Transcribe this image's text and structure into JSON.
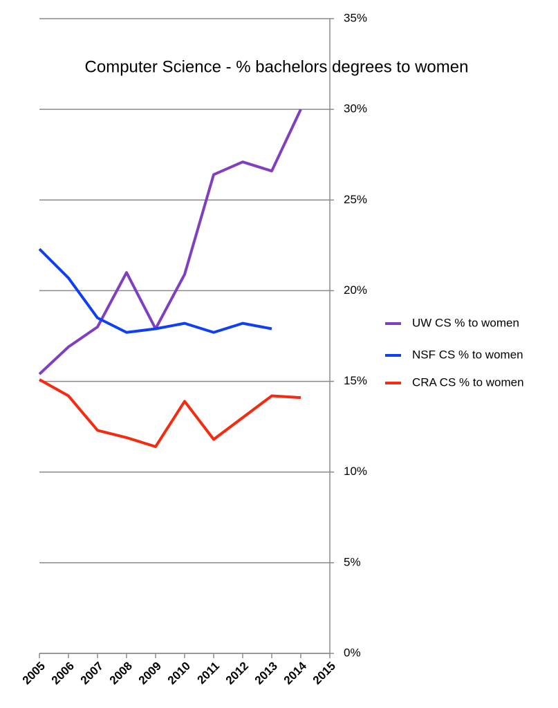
{
  "chart_data": {
    "type": "line",
    "title": "Computer Science - % bachelors degrees to women",
    "x": [
      2005,
      2006,
      2007,
      2008,
      2009,
      2010,
      2011,
      2012,
      2013,
      2014
    ],
    "xlim": [
      2005,
      2015
    ],
    "xticks": [
      2005,
      2006,
      2007,
      2008,
      2009,
      2010,
      2011,
      2012,
      2013,
      2014,
      2015
    ],
    "ylim": [
      0,
      35
    ],
    "yticks": [
      {
        "value": 0,
        "label": "0%"
      },
      {
        "value": 5,
        "label": "5%"
      },
      {
        "value": 10,
        "label": "10%"
      },
      {
        "value": 15,
        "label": "15%"
      },
      {
        "value": 20,
        "label": "20%"
      },
      {
        "value": 25,
        "label": "25%"
      },
      {
        "value": 30,
        "label": "30%"
      },
      {
        "value": 35,
        "label": "35%"
      }
    ],
    "grid": true,
    "legend": "right",
    "series": [
      {
        "name": "UW CS % to women",
        "color": "#7f3fbf",
        "values": [
          15.4,
          16.9,
          18.0,
          21.0,
          17.9,
          20.9,
          26.4,
          27.1,
          26.6,
          30.0
        ]
      },
      {
        "name": "NSF CS % to women",
        "color": "#0f3ff5",
        "values": [
          22.3,
          20.7,
          18.5,
          17.7,
          17.9,
          18.2,
          17.7,
          18.2,
          17.9,
          null
        ]
      },
      {
        "name": "CRA CS % to women",
        "color": "#f52a0f",
        "values": [
          15.1,
          14.2,
          12.3,
          11.9,
          11.4,
          13.9,
          11.8,
          13.0,
          14.2,
          14.1
        ]
      }
    ]
  }
}
